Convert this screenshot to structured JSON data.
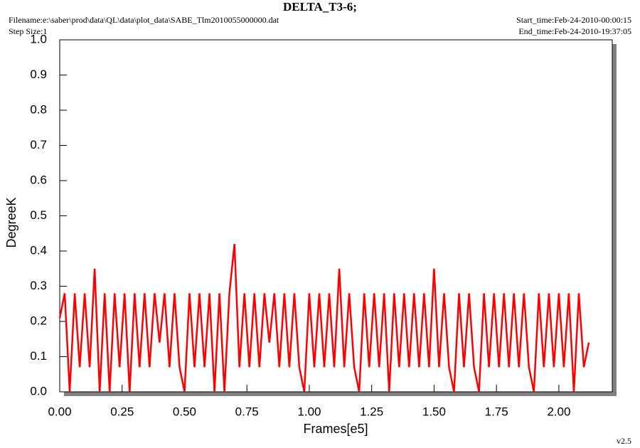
{
  "chart_data": {
    "type": "line",
    "title": "DELTA_T3-6;",
    "filename": "Filename:e:\\saber\\prod\\data\\QL\\data\\plot_data\\SABE_Tlm2010055000000.dat",
    "step_size": "Step Size:1",
    "start_time": "Start_time:Feb-24-2010-00:00:15",
    "end_time": "End_time:Feb-24-2010-19:37:05",
    "version": "v2.5",
    "x_label": "Frames[e5]",
    "y_label": "DegreeK",
    "xlim": [
      0,
      2.214
    ],
    "ylim": [
      0,
      1
    ],
    "xticks": [
      {
        "value": 0,
        "label": "0.00"
      },
      0.25,
      {
        "value": 0.5,
        "label": "0.50"
      },
      0.75,
      {
        "value": 1,
        "label": "1.00"
      },
      1.25,
      {
        "value": 1.5,
        "label": "1.50"
      },
      1.75,
      {
        "value": 2,
        "label": "2.00"
      }
    ],
    "yticks": [
      {
        "value": 0,
        "label": "0.0"
      },
      0.1,
      0.2,
      0.3,
      0.4,
      0.5,
      0.6,
      0.7,
      0.8,
      0.9,
      {
        "value": 1,
        "label": "1.0"
      }
    ],
    "series": [
      {
        "color": "#ff0000",
        "x": [
          0,
          0.02,
          0.04,
          0.06,
          0.08,
          0.1,
          0.12,
          0.14,
          0.16,
          0.18,
          0.2,
          0.22,
          0.24,
          0.26,
          0.28,
          0.3,
          0.32,
          0.34,
          0.36,
          0.38,
          0.4,
          0.42,
          0.44,
          0.46,
          0.48,
          0.5,
          0.52,
          0.54,
          0.56,
          0.58,
          0.6,
          0.62,
          0.64,
          0.66,
          0.68,
          0.7,
          0.72,
          0.74,
          0.76,
          0.78,
          0.8,
          0.82,
          0.84,
          0.86,
          0.88,
          0.9,
          0.92,
          0.94,
          0.96,
          0.98,
          1,
          1.02,
          1.04,
          1.06,
          1.08,
          1.1,
          1.12,
          1.14,
          1.16,
          1.18,
          1.2,
          1.22,
          1.24,
          1.26,
          1.28,
          1.3,
          1.32,
          1.34,
          1.36,
          1.38,
          1.4,
          1.42,
          1.44,
          1.46,
          1.48,
          1.5,
          1.52,
          1.54,
          1.56,
          1.58,
          1.6,
          1.62,
          1.64,
          1.66,
          1.68,
          1.7,
          1.72,
          1.74,
          1.76,
          1.78,
          1.8,
          1.82,
          1.84,
          1.86,
          1.88,
          1.9,
          1.92,
          1.94,
          1.96,
          1.98,
          2,
          2.02,
          2.04,
          2.06,
          2.08,
          2.1,
          2.12
        ],
        "values": [
          0.21,
          0.28,
          0,
          0.28,
          0.07,
          0.28,
          0.07,
          0.35,
          0,
          0.28,
          0,
          0.28,
          0.07,
          0.28,
          0,
          0.28,
          0.07,
          0.28,
          0.07,
          0.28,
          0.14,
          0.28,
          0.07,
          0.28,
          0.07,
          0,
          0.28,
          0.07,
          0.28,
          0.07,
          0.28,
          0,
          0.28,
          0,
          0.28,
          0.42,
          0.07,
          0.28,
          0.07,
          0.28,
          0.07,
          0.28,
          0.14,
          0.28,
          0.07,
          0.28,
          0.07,
          0.28,
          0.07,
          0,
          0.28,
          0.07,
          0.28,
          0.07,
          0.28,
          0.07,
          0.35,
          0.07,
          0.28,
          0.07,
          0,
          0.28,
          0.07,
          0.28,
          0.07,
          0.28,
          0,
          0.28,
          0.07,
          0.28,
          0.07,
          0.28,
          0.07,
          0.28,
          0.07,
          0.35,
          0.07,
          0.28,
          0.07,
          0,
          0.28,
          0.07,
          0.28,
          0.07,
          0,
          0.28,
          0.07,
          0.28,
          0.07,
          0.28,
          0.07,
          0.28,
          0.07,
          0.28,
          0.07,
          0,
          0.28,
          0.07,
          0.28,
          0.07,
          0.28,
          0.07,
          0.28,
          0,
          0.28,
          0.07,
          0.14
        ]
      }
    ]
  }
}
